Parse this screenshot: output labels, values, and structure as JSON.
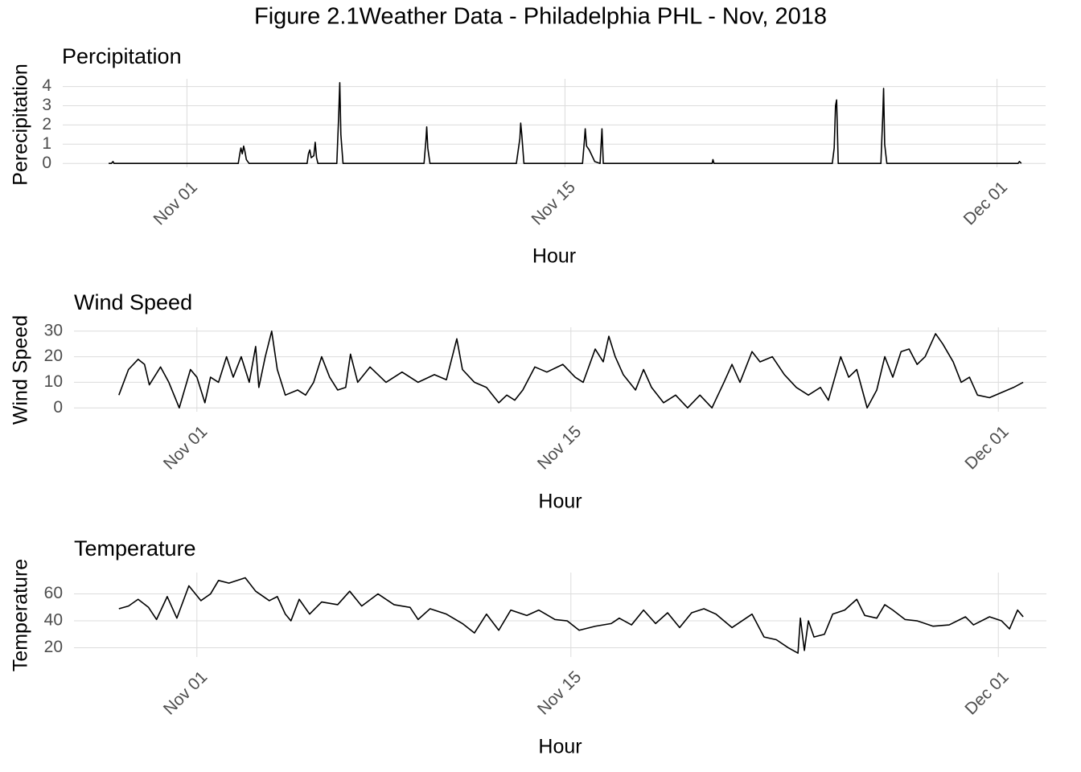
{
  "title": "Figure 2.1Weather Data - Philadelphia PHL - Nov, 2018",
  "chart_data": [
    {
      "type": "line",
      "title": "Percipitation",
      "xlabel": "Hour",
      "ylabel": "Perecipitation",
      "color": "#000000",
      "grid": true,
      "x": [
        -2.9,
        -2.8,
        -2.74,
        -2.7,
        1.9,
        1.97,
        2.0,
        2.05,
        2.1,
        2.15,
        2.2,
        2.3,
        4.45,
        4.5,
        4.55,
        4.6,
        4.7,
        4.75,
        4.8,
        4.85,
        5.55,
        5.62,
        5.66,
        5.7,
        5.78,
        8.78,
        8.85,
        8.88,
        8.92,
        9.0,
        12.2,
        12.28,
        12.33,
        12.36,
        12.4,
        12.48,
        14.65,
        14.72,
        14.75,
        14.8,
        14.9,
        15.0,
        15.1,
        15.3,
        15.37,
        15.42,
        19.45,
        19.48,
        19.52,
        23.9,
        23.97,
        24.02,
        24.06,
        24.12,
        25.7,
        25.77,
        25.8,
        25.84,
        25.92,
        30.78,
        30.83,
        30.9
      ],
      "values": [
        0,
        0,
        0.1,
        0,
        0,
        0.6,
        0.8,
        0.5,
        0.9,
        0.6,
        0.2,
        0,
        0,
        0.5,
        0.7,
        0.3,
        0.4,
        1.1,
        0.3,
        0,
        0,
        2.5,
        4.2,
        1.5,
        0,
        0,
        1.2,
        1.9,
        0.8,
        0,
        0,
        0.8,
        1.3,
        2.1,
        1.5,
        0,
        0,
        1.2,
        1.8,
        0.9,
        0.7,
        0.4,
        0.1,
        0,
        1.8,
        0,
        0,
        0.2,
        0,
        0,
        0.8,
        3.0,
        3.3,
        0,
        0,
        2.5,
        3.9,
        1.0,
        0,
        0,
        0.1,
        0
      ],
      "xlim": [
        -4.6,
        31.8
      ],
      "xticks": [
        {
          "value": 0,
          "label": "Nov 01"
        },
        {
          "value": 14,
          "label": "Nov 15"
        },
        {
          "value": 30,
          "label": "Dec 01"
        }
      ],
      "ylim": [
        -0.2,
        4.4
      ],
      "yticks": [
        0,
        1,
        2,
        3,
        4
      ]
    },
    {
      "type": "line",
      "title": "Wind Speed",
      "xlabel": "Hour",
      "ylabel": "Wind Speed",
      "color": "#000000",
      "grid": true,
      "x": [
        -2.92,
        -2.56,
        -2.2,
        -1.96,
        -1.78,
        -1.36,
        -1.05,
        -0.66,
        -0.24,
        0,
        0.3,
        0.51,
        0.81,
        1.11,
        1.36,
        1.66,
        1.96,
        2.2,
        2.32,
        2.56,
        2.8,
        3.01,
        3.31,
        3.77,
        4.07,
        4.37,
        4.67,
        4.97,
        5.27,
        5.57,
        5.75,
        6.02,
        6.48,
        7.08,
        7.68,
        8.28,
        8.89,
        9.34,
        9.73,
        9.94,
        10.39,
        10.84,
        11.3,
        11.6,
        11.9,
        12.2,
        12.65,
        13.1,
        13.7,
        14.16,
        14.46,
        14.91,
        15.21,
        15.42,
        15.66,
        15.96,
        16.42,
        16.72,
        17.02,
        17.47,
        17.92,
        18.37,
        18.83,
        19.28,
        19.73,
        20.03,
        20.33,
        20.78,
        21.08,
        21.54,
        21.99,
        22.44,
        22.89,
        23.34,
        23.64,
        24.1,
        24.4,
        24.7,
        25.09,
        25.45,
        25.75,
        26.05,
        26.36,
        26.66,
        26.96,
        27.26,
        27.65,
        27.92,
        28.31,
        28.61,
        28.92,
        29.22,
        29.67,
        30.12,
        30.57,
        30.93
      ],
      "values": [
        5,
        15,
        19,
        17,
        9,
        16,
        10,
        0,
        15,
        12,
        2,
        12,
        10,
        20,
        12,
        20,
        10,
        24,
        8,
        20,
        30,
        15,
        5,
        7,
        5,
        10,
        20,
        12,
        7,
        8,
        21,
        10,
        16,
        10,
        14,
        10,
        13,
        11,
        27,
        15,
        10,
        8,
        2,
        5,
        3,
        7,
        16,
        14,
        17,
        12,
        10,
        23,
        18,
        28,
        20,
        13,
        7,
        15,
        8,
        2,
        5,
        0,
        5,
        0,
        10,
        17,
        10,
        22,
        18,
        20,
        13,
        8,
        5,
        8,
        3,
        20,
        12,
        15,
        0,
        7,
        20,
        12,
        22,
        23,
        17,
        20,
        29,
        25,
        18,
        10,
        12,
        5,
        4,
        6,
        8,
        10
      ],
      "xlim": [
        -4.6,
        31.8
      ],
      "xticks": [
        {
          "value": 0,
          "label": "Nov 01"
        },
        {
          "value": 14,
          "label": "Nov 15"
        },
        {
          "value": 30,
          "label": "Dec 01"
        }
      ],
      "ylim": [
        -1.5,
        31.5
      ],
      "yticks": [
        0,
        10,
        20,
        30
      ]
    },
    {
      "type": "line",
      "title": "Temperature",
      "xlabel": "Hour",
      "ylabel": "Temperature",
      "color": "#000000",
      "grid": true,
      "x": [
        -2.92,
        -2.56,
        -2.2,
        -1.81,
        -1.51,
        -1.11,
        -0.75,
        -0.3,
        0.15,
        0.51,
        0.81,
        1.2,
        1.81,
        2.2,
        2.71,
        3.01,
        3.31,
        3.52,
        3.83,
        4.22,
        4.67,
        5.27,
        5.72,
        6.17,
        6.78,
        7.38,
        7.98,
        8.28,
        8.73,
        9.34,
        9.94,
        10.39,
        10.84,
        11.3,
        11.75,
        12.35,
        12.8,
        13.4,
        13.86,
        14.31,
        14.91,
        15.51,
        15.81,
        16.27,
        16.72,
        17.17,
        17.62,
        18.07,
        18.52,
        18.98,
        19.43,
        20.03,
        20.78,
        21.23,
        21.69,
        22.14,
        22.5,
        22.59,
        22.74,
        22.89,
        23.1,
        23.49,
        23.8,
        24.25,
        24.7,
        25.0,
        25.45,
        25.75,
        26.05,
        26.51,
        26.96,
        27.56,
        28.16,
        28.77,
        29.07,
        29.67,
        30.12,
        30.42,
        30.72,
        30.93
      ],
      "values": [
        49,
        51,
        56,
        50,
        41,
        58,
        42,
        66,
        55,
        60,
        70,
        68,
        72,
        62,
        55,
        58,
        45,
        40,
        56,
        45,
        54,
        52,
        62,
        51,
        60,
        52,
        50,
        41,
        49,
        45,
        38,
        31,
        45,
        33,
        48,
        44,
        48,
        41,
        40,
        33,
        36,
        38,
        42,
        37,
        48,
        38,
        46,
        35,
        46,
        49,
        45,
        35,
        45,
        28,
        26,
        20,
        16,
        42,
        18,
        40,
        28,
        30,
        45,
        48,
        56,
        44,
        42,
        52,
        48,
        41,
        40,
        36,
        37,
        43,
        37,
        43,
        40,
        34,
        48,
        43
      ],
      "xlim": [
        -4.6,
        31.8
      ],
      "xticks": [
        {
          "value": 0,
          "label": "Nov 01"
        },
        {
          "value": 14,
          "label": "Nov 15"
        },
        {
          "value": 30,
          "label": "Dec 01"
        }
      ],
      "ylim": [
        13.15,
        75.85
      ],
      "yticks": [
        20,
        40,
        60
      ]
    }
  ]
}
